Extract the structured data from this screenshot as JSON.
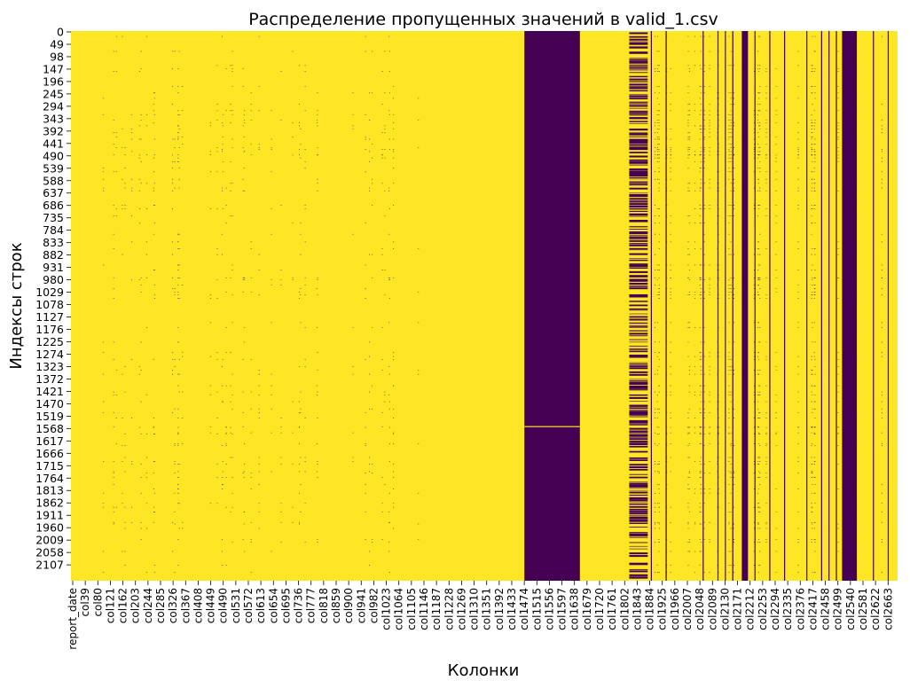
{
  "chart_data": {
    "type": "heatmap",
    "title": "Распределение пропущенных значений в valid_1.csv",
    "xlabel": "Колонки",
    "ylabel": "Индексы строк",
    "legend": "none",
    "grid": false,
    "value_meaning": {
      "present": "yellow",
      "missing": "purple"
    },
    "colors": {
      "present": "#fde725",
      "missing": "#440154"
    },
    "n_rows": 2140,
    "n_columns": 2680,
    "y_tick_labels": [
      "0",
      "49",
      "98",
      "147",
      "196",
      "245",
      "294",
      "343",
      "392",
      "441",
      "490",
      "539",
      "588",
      "637",
      "686",
      "735",
      "784",
      "833",
      "882",
      "931",
      "980",
      "1029",
      "1078",
      "1127",
      "1176",
      "1225",
      "1274",
      "1323",
      "1372",
      "1421",
      "1470",
      "1519",
      "1568",
      "1617",
      "1666",
      "1715",
      "1764",
      "1813",
      "1862",
      "1911",
      "1960",
      "2009",
      "2058",
      "2107"
    ],
    "x_tick_labels": [
      "report_date",
      "col39",
      "col80",
      "col121",
      "col162",
      "col203",
      "col244",
      "col285",
      "col326",
      "col367",
      "col408",
      "col449",
      "col490",
      "col531",
      "col572",
      "col613",
      "col654",
      "col695",
      "col736",
      "col777",
      "col818",
      "col859",
      "col900",
      "col941",
      "col982",
      "col1023",
      "col1064",
      "col1105",
      "col1146",
      "col1187",
      "col1228",
      "col1269",
      "col1310",
      "col1351",
      "col1392",
      "col1433",
      "col1474",
      "col1515",
      "col1556",
      "col1597",
      "col1638",
      "col1679",
      "col1720",
      "col1761",
      "col1802",
      "col1843",
      "col1884",
      "col1925",
      "col1966",
      "col2007",
      "col2048",
      "col2089",
      "col2130",
      "col2171",
      "col2212",
      "col2253",
      "col2294",
      "col2335",
      "col2376",
      "col2417",
      "col2458",
      "col2499",
      "col2540",
      "col2581",
      "col2622",
      "col2663"
    ],
    "fully_missing_column_ranges": [
      [
        1470,
        1650
      ],
      [
        2175,
        2195
      ],
      [
        2500,
        2548
      ]
    ],
    "mostly_missing_column_ranges": [
      [
        1810,
        1870
      ]
    ],
    "sparse_missing_column_ranges": [
      [
        15,
        1130
      ],
      [
        1870,
        2680
      ]
    ]
  }
}
